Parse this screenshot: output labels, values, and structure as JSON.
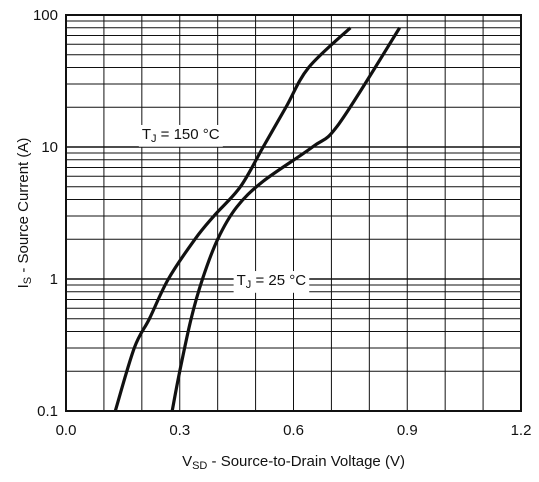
{
  "chart_data": {
    "type": "line",
    "xlabel": {
      "main": "V",
      "sub": "SD",
      "rest": " - Source-to-Drain Voltage (V)"
    },
    "ylabel": {
      "main": "I",
      "sub": "S",
      "rest": " - Source Current (A)"
    },
    "xlim": [
      0,
      1.2
    ],
    "ylim": [
      0.1,
      100
    ],
    "yscale": "log",
    "grid": true,
    "x_ticks": [
      0.0,
      0.3,
      0.6,
      0.9,
      1.2
    ],
    "x_tick_labels": [
      "0.0",
      "0.3",
      "0.6",
      "0.9",
      "1.2"
    ],
    "y_ticks": [
      0.1,
      1,
      10,
      100
    ],
    "y_tick_labels": [
      "0.1",
      "1",
      "10",
      "100"
    ],
    "series": [
      {
        "points": [
          [
            0.13,
            0.1
          ],
          [
            0.18,
            0.3
          ],
          [
            0.22,
            0.5
          ],
          [
            0.27,
            1
          ],
          [
            0.34,
            2
          ],
          [
            0.39,
            3
          ],
          [
            0.46,
            5
          ],
          [
            0.52,
            10
          ],
          [
            0.58,
            20
          ],
          [
            0.64,
            40
          ],
          [
            0.75,
            80
          ]
        ],
        "color": "#111111"
      },
      {
        "points": [
          [
            0.28,
            0.1
          ],
          [
            0.3,
            0.2
          ],
          [
            0.33,
            0.5
          ],
          [
            0.36,
            1
          ],
          [
            0.4,
            2
          ],
          [
            0.45,
            3.5
          ],
          [
            0.52,
            5.5
          ],
          [
            0.65,
            10
          ],
          [
            0.72,
            15
          ],
          [
            0.88,
            80
          ]
        ],
        "color": "#111111"
      }
    ],
    "annotations": [
      {
        "main": "T",
        "sub": "J",
        "rest": " = 150 °C",
        "x": 0.2,
        "y": 11.5
      },
      {
        "main": "T",
        "sub": "J",
        "rest": " = 25 °C",
        "x": 0.45,
        "y": 0.9
      }
    ]
  }
}
